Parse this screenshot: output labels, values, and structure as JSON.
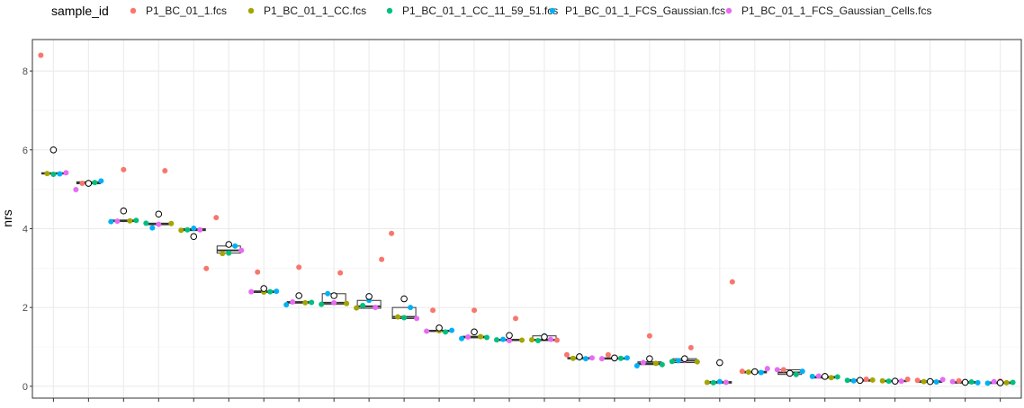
{
  "chart_data": {
    "type": "boxplot",
    "legend_title": "sample_id",
    "legend_position": "top",
    "ylabel": "nrs",
    "xlabel": "",
    "ylim": [
      -0.3,
      8.8
    ],
    "y_ticks": [
      0,
      2,
      4,
      6,
      8
    ],
    "grid": true,
    "series": [
      {
        "name": "P1_BC_01_1.fcs",
        "color": "#F8766D"
      },
      {
        "name": "P1_BC_01_1_CC.fcs",
        "color": "#A3A500"
      },
      {
        "name": "P1_BC_01_1_CC_11_59_51.fcs",
        "color": "#00BF7D"
      },
      {
        "name": "P1_BC_01_1_FCS_Gaussian.fcs",
        "color": "#00B0F6"
      },
      {
        "name": "P1_BC_01_1_FCS_Gaussian_Cells.fcs",
        "color": "#E76BF3"
      }
    ],
    "categories": [
      {
        "mean": 6.0,
        "box": [
          5.39,
          5.4,
          5.42
        ],
        "points": [
          8.4,
          5.4,
          5.38,
          5.39,
          5.42
        ]
      },
      {
        "mean": 5.15,
        "box": [
          5.14,
          5.16,
          5.19
        ],
        "points": [
          5.15,
          5.16,
          5.17,
          5.21,
          4.99
        ]
      },
      {
        "mean": 4.45,
        "box": [
          4.18,
          4.2,
          4.22
        ],
        "points": [
          5.5,
          4.2,
          4.21,
          4.18,
          4.19
        ]
      },
      {
        "mean": 4.37,
        "box": [
          4.1,
          4.12,
          4.14
        ],
        "points": [
          5.47,
          4.13,
          4.14,
          4.02,
          4.11
        ]
      },
      {
        "mean": 3.8,
        "box": [
          3.95,
          3.97,
          4.0
        ],
        "points": [
          2.99,
          3.96,
          3.97,
          4.01,
          3.97
        ]
      },
      {
        "mean": 3.6,
        "box": [
          3.38,
          3.45,
          3.56
        ],
        "points": [
          4.28,
          3.37,
          3.38,
          3.56,
          3.45
        ]
      },
      {
        "mean": 2.48,
        "box": [
          2.38,
          2.4,
          2.42
        ],
        "points": [
          2.9,
          2.39,
          2.4,
          2.41,
          2.4
        ]
      },
      {
        "mean": 2.3,
        "box": [
          2.11,
          2.13,
          2.15
        ],
        "points": [
          3.02,
          2.12,
          2.13,
          2.07,
          2.14
        ]
      },
      {
        "mean": 2.3,
        "box": [
          2.08,
          2.12,
          2.35
        ],
        "points": [
          2.88,
          2.1,
          2.08,
          2.35,
          2.12
        ]
      },
      {
        "mean": 2.28,
        "box": [
          1.98,
          2.03,
          2.18
        ],
        "points": [
          3.22,
          1.99,
          2.05,
          2.18,
          2.0
        ]
      },
      {
        "mean": 2.22,
        "box": [
          1.72,
          1.76,
          2.0
        ],
        "points": [
          3.88,
          1.76,
          1.74,
          2.0,
          1.72
        ]
      },
      {
        "mean": 1.48,
        "box": [
          1.39,
          1.41,
          1.42
        ],
        "points": [
          1.93,
          1.41,
          1.38,
          1.42,
          1.4
        ]
      },
      {
        "mean": 1.38,
        "box": [
          1.23,
          1.25,
          1.27
        ],
        "points": [
          1.93,
          1.26,
          1.24,
          1.21,
          1.25
        ]
      },
      {
        "mean": 1.29,
        "box": [
          1.16,
          1.18,
          1.19
        ],
        "points": [
          1.72,
          1.17,
          1.18,
          1.19,
          1.16
        ]
      },
      {
        "mean": 1.25,
        "box": [
          1.16,
          1.18,
          1.28
        ],
        "points": [
          1.17,
          1.18,
          1.16,
          1.28,
          1.19
        ]
      },
      {
        "mean": 0.75,
        "box": [
          0.7,
          0.71,
          0.73
        ],
        "points": [
          0.8,
          0.71,
          0.72,
          0.7,
          0.72
        ]
      },
      {
        "mean": 0.72,
        "box": [
          0.69,
          0.71,
          0.72
        ],
        "points": [
          0.8,
          0.7,
          0.71,
          0.72,
          0.7
        ]
      },
      {
        "mean": 0.7,
        "box": [
          0.55,
          0.58,
          0.62
        ],
        "points": [
          1.28,
          0.58,
          0.55,
          0.52,
          0.6
        ]
      },
      {
        "mean": 0.7,
        "box": [
          0.6,
          0.65,
          0.7
        ],
        "points": [
          0.98,
          0.62,
          0.63,
          0.65,
          0.66
        ]
      },
      {
        "mean": 0.6,
        "box": [
          0.08,
          0.1,
          0.12
        ],
        "points": [
          2.65,
          0.1,
          0.09,
          0.12,
          0.1
        ]
      },
      {
        "mean": 0.37,
        "box": [
          0.34,
          0.36,
          0.38
        ],
        "points": [
          0.38,
          0.36,
          0.37,
          0.35,
          0.45
        ]
      },
      {
        "mean": 0.33,
        "box": [
          0.3,
          0.35,
          0.42
        ],
        "points": [
          0.42,
          0.33,
          0.3,
          0.38,
          0.42
        ]
      },
      {
        "mean": 0.25,
        "box": [
          0.21,
          0.23,
          0.25
        ],
        "points": [
          0.27,
          0.22,
          0.24,
          0.25,
          0.26
        ]
      },
      {
        "mean": 0.15,
        "box": [
          0.13,
          0.15,
          0.17
        ],
        "points": [
          0.18,
          0.16,
          0.15,
          0.14,
          0.17
        ]
      },
      {
        "mean": 0.13,
        "box": [
          0.12,
          0.13,
          0.15
        ],
        "points": [
          0.18,
          0.14,
          0.13,
          0.15,
          0.13
        ]
      },
      {
        "mean": 0.12,
        "box": [
          0.1,
          0.12,
          0.14
        ],
        "points": [
          0.15,
          0.12,
          0.13,
          0.11,
          0.17
        ]
      },
      {
        "mean": 0.1,
        "box": [
          0.08,
          0.1,
          0.12
        ],
        "points": [
          0.14,
          0.1,
          0.11,
          0.09,
          0.12
        ]
      },
      {
        "mean": 0.09,
        "box": [
          0.07,
          0.09,
          0.11
        ],
        "points": [
          0.13,
          0.09,
          0.1,
          0.08,
          0.12
        ]
      }
    ]
  }
}
